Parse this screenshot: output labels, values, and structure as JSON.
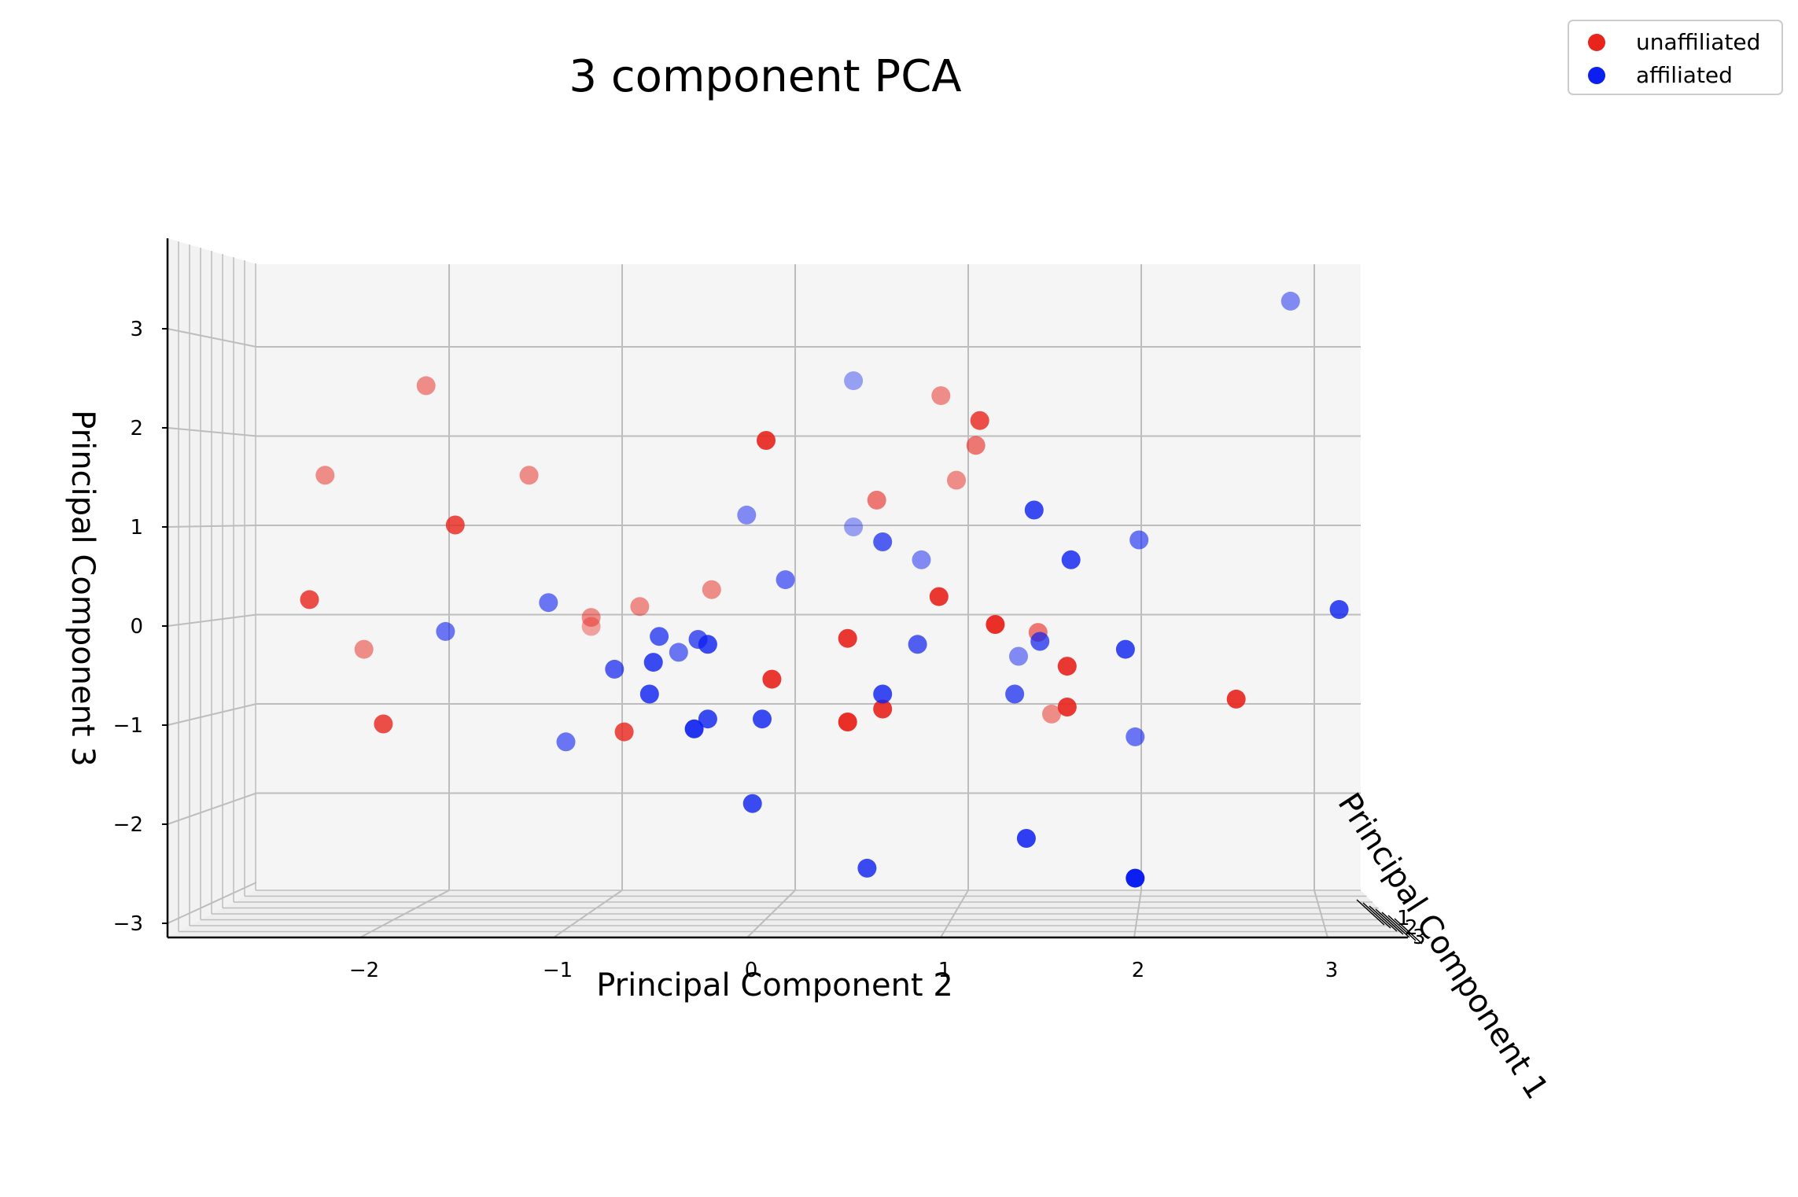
{
  "chart_data": {
    "type": "scatter",
    "title": "3 component PCA",
    "xlabel": "Principal Component 2",
    "ylabel": "Principal Component 3",
    "zlabel": "Principal Component 1",
    "xlim": [
      -2.95,
      3.1
    ],
    "ylim": [
      -3.0,
      3.5
    ],
    "x_ticks": [
      "−2",
      "−1",
      "0",
      "1",
      "2",
      "3"
    ],
    "x_tick_values": [
      -2,
      -1,
      0,
      1,
      2,
      3
    ],
    "y_ticks": [
      "−3",
      "−2",
      "−1",
      "0",
      "1",
      "2",
      "3"
    ],
    "y_tick_values": [
      -3,
      -2,
      -1,
      0,
      1,
      2,
      3
    ],
    "z_ticks": [
      "1",
      "2",
      "3"
    ],
    "grid": true,
    "legend_position": "top-right",
    "series": [
      {
        "name": "unaffiliated",
        "color": "#e8241c",
        "points": [
          {
            "x": -1.9,
            "y": 2.4,
            "alpha": 0.5
          },
          {
            "x": -2.42,
            "y": 1.5,
            "alpha": 0.5
          },
          {
            "x": -1.37,
            "y": 1.5,
            "alpha": 0.5
          },
          {
            "x": -1.75,
            "y": 1.0,
            "alpha": 0.8
          },
          {
            "x": -2.5,
            "y": 0.25,
            "alpha": 0.8
          },
          {
            "x": -2.22,
            "y": -0.25,
            "alpha": 0.5
          },
          {
            "x": -2.12,
            "y": -1.0,
            "alpha": 0.8
          },
          {
            "x": -1.05,
            "y": 0.07,
            "alpha": 0.5
          },
          {
            "x": -1.05,
            "y": -0.02,
            "alpha": 0.4
          },
          {
            "x": -0.8,
            "y": 0.18,
            "alpha": 0.5
          },
          {
            "x": -0.43,
            "y": 0.35,
            "alpha": 0.5
          },
          {
            "x": -0.88,
            "y": -1.08,
            "alpha": 0.8
          },
          {
            "x": -0.15,
            "y": 1.85,
            "alpha": 0.9
          },
          {
            "x": 0.75,
            "y": 2.3,
            "alpha": 0.5
          },
          {
            "x": 0.95,
            "y": 2.05,
            "alpha": 0.8
          },
          {
            "x": 0.93,
            "y": 1.8,
            "alpha": 0.6
          },
          {
            "x": 0.83,
            "y": 1.45,
            "alpha": 0.5
          },
          {
            "x": 0.42,
            "y": 1.25,
            "alpha": 0.6
          },
          {
            "x": 0.74,
            "y": 0.28,
            "alpha": 0.9
          },
          {
            "x": 1.03,
            "y": 0.0,
            "alpha": 0.95
          },
          {
            "x": 1.25,
            "y": -0.08,
            "alpha": 0.6
          },
          {
            "x": 1.4,
            "y": -0.42,
            "alpha": 0.9
          },
          {
            "x": 0.27,
            "y": -0.14,
            "alpha": 0.9
          },
          {
            "x": -0.12,
            "y": -0.55,
            "alpha": 0.9
          },
          {
            "x": 0.27,
            "y": -0.98,
            "alpha": 0.95
          },
          {
            "x": 0.45,
            "y": -0.85,
            "alpha": 0.9
          },
          {
            "x": 1.4,
            "y": -0.83,
            "alpha": 0.9
          },
          {
            "x": 1.32,
            "y": -0.9,
            "alpha": 0.5
          },
          {
            "x": 2.27,
            "y": -0.75,
            "alpha": 0.9
          }
        ]
      },
      {
        "name": "affiliated",
        "color": "#0b1ff0",
        "points": [
          {
            "x": 2.55,
            "y": 3.25,
            "alpha": 0.5
          },
          {
            "x": 0.3,
            "y": 2.45,
            "alpha": 0.4
          },
          {
            "x": -0.25,
            "y": 1.1,
            "alpha": 0.5
          },
          {
            "x": 0.3,
            "y": 0.98,
            "alpha": 0.4
          },
          {
            "x": 0.45,
            "y": 0.83,
            "alpha": 0.7
          },
          {
            "x": 0.65,
            "y": 0.65,
            "alpha": 0.5
          },
          {
            "x": -0.05,
            "y": 0.45,
            "alpha": 0.6
          },
          {
            "x": 1.23,
            "y": 1.15,
            "alpha": 0.8
          },
          {
            "x": 1.42,
            "y": 0.65,
            "alpha": 0.8
          },
          {
            "x": 1.77,
            "y": 0.85,
            "alpha": 0.6
          },
          {
            "x": 2.8,
            "y": 0.15,
            "alpha": 0.8
          },
          {
            "x": -1.27,
            "y": 0.22,
            "alpha": 0.6
          },
          {
            "x": -1.8,
            "y": -0.07,
            "alpha": 0.6
          },
          {
            "x": -0.7,
            "y": -0.12,
            "alpha": 0.7
          },
          {
            "x": -0.5,
            "y": -0.15,
            "alpha": 0.7
          },
          {
            "x": -0.45,
            "y": -0.2,
            "alpha": 0.8
          },
          {
            "x": -0.6,
            "y": -0.28,
            "alpha": 0.6
          },
          {
            "x": -0.73,
            "y": -0.38,
            "alpha": 0.8
          },
          {
            "x": -0.93,
            "y": -0.45,
            "alpha": 0.7
          },
          {
            "x": -0.75,
            "y": -0.7,
            "alpha": 0.8
          },
          {
            "x": -0.45,
            "y": -0.95,
            "alpha": 0.8
          },
          {
            "x": -0.52,
            "y": -1.05,
            "alpha": 0.9
          },
          {
            "x": -0.17,
            "y": -0.95,
            "alpha": 0.8
          },
          {
            "x": -1.18,
            "y": -1.18,
            "alpha": 0.6
          },
          {
            "x": -0.22,
            "y": -1.8,
            "alpha": 0.8
          },
          {
            "x": 0.37,
            "y": -2.45,
            "alpha": 0.8
          },
          {
            "x": 0.63,
            "y": -0.2,
            "alpha": 0.7
          },
          {
            "x": 0.45,
            "y": -0.7,
            "alpha": 0.8
          },
          {
            "x": 1.15,
            "y": -0.32,
            "alpha": 0.5
          },
          {
            "x": 1.26,
            "y": -0.17,
            "alpha": 0.7
          },
          {
            "x": 1.13,
            "y": -0.7,
            "alpha": 0.7
          },
          {
            "x": 1.7,
            "y": -0.25,
            "alpha": 0.8
          },
          {
            "x": 1.75,
            "y": -1.13,
            "alpha": 0.6
          },
          {
            "x": 1.19,
            "y": -2.15,
            "alpha": 0.85
          },
          {
            "x": 1.75,
            "y": -2.55,
            "alpha": 1.0
          }
        ]
      }
    ]
  }
}
